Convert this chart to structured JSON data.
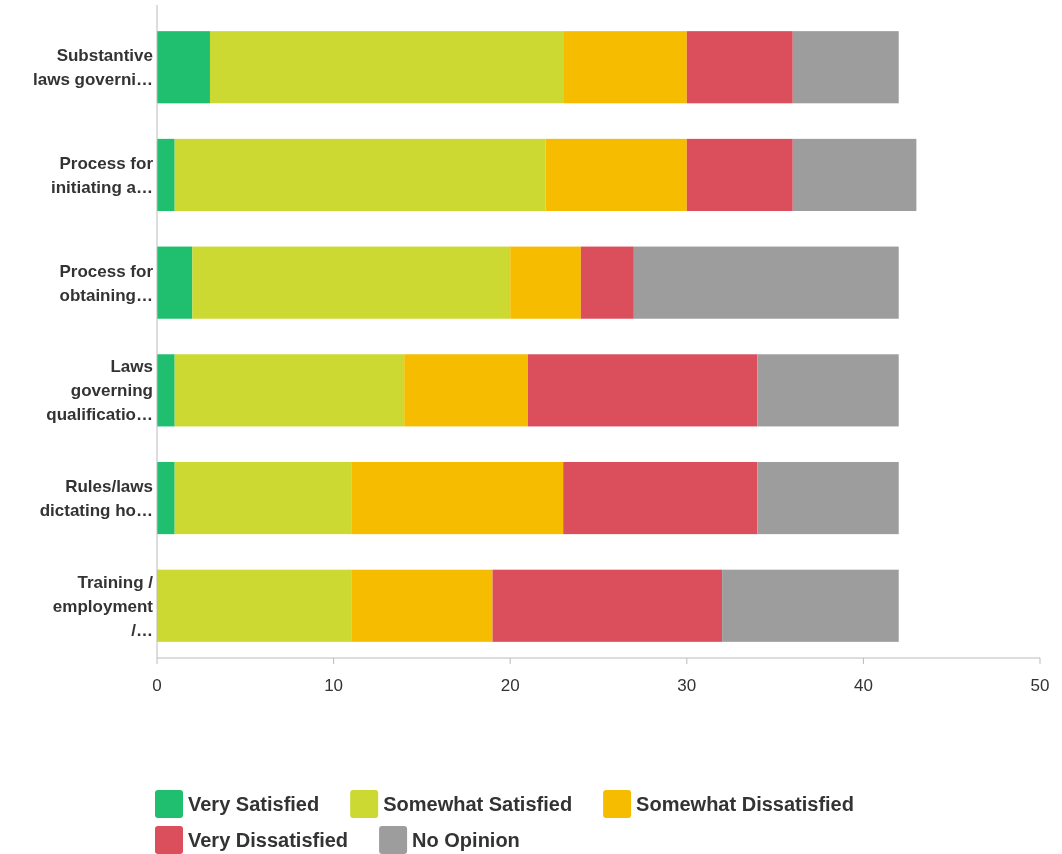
{
  "chart_data": {
    "type": "bar",
    "orientation": "horizontal",
    "stacked": true,
    "categories": [
      "Substantive laws governi…",
      "Process for initiating a…",
      "Process for obtaining…",
      "Laws governing qualificatio…",
      "Rules/laws dictating ho…",
      "Training / employment /…"
    ],
    "series": [
      {
        "name": "Very Satisfied",
        "color": "#1fbf6f",
        "values": [
          3,
          1,
          2,
          1,
          1,
          0
        ]
      },
      {
        "name": "Somewhat Satisfied",
        "color": "#cbd932",
        "values": [
          20,
          21,
          18,
          13,
          10,
          11
        ]
      },
      {
        "name": "Somewhat Dissatisfied",
        "color": "#f6bd00",
        "values": [
          7,
          8,
          4,
          7,
          12,
          8
        ]
      },
      {
        "name": "Very Dissatisfied",
        "color": "#db4f5d",
        "values": [
          6,
          6,
          3,
          13,
          11,
          13
        ]
      },
      {
        "name": "No Opinion",
        "color": "#9d9d9d",
        "values": [
          6,
          7,
          15,
          8,
          8,
          10
        ]
      }
    ],
    "xlim": [
      0,
      50
    ],
    "xticks": [
      0,
      10,
      20,
      30,
      40,
      50
    ],
    "grid": false,
    "legend": "bottom"
  }
}
